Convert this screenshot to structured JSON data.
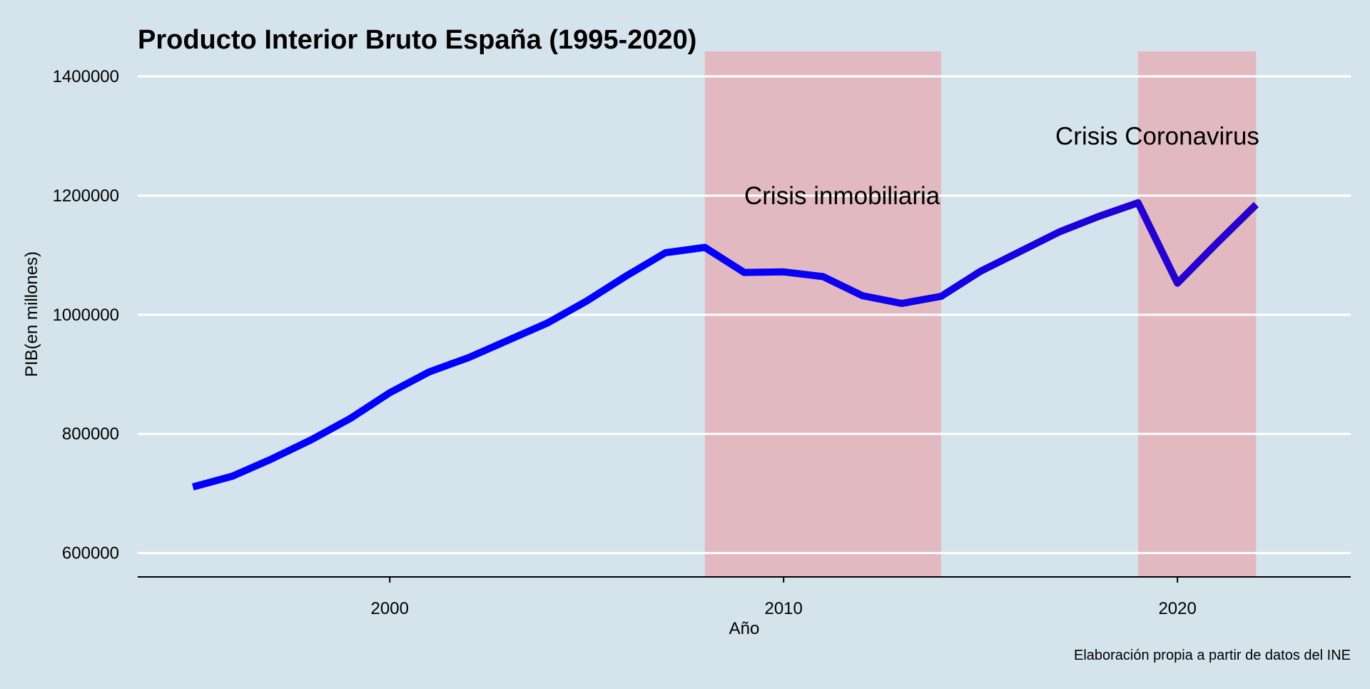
{
  "chart_data": {
    "type": "line",
    "title": "Producto Interior Bruto España (1995-2020)",
    "xlabel": "Año",
    "ylabel": "PIB(en millones)",
    "caption": "Elaboración propia a partir de datos del INE",
    "xlim": [
      1993.6,
      2024.4
    ],
    "ylim": [
      560000,
      1442000
    ],
    "xticks": [
      2000,
      2010,
      2020
    ],
    "yticks": [
      600000,
      800000,
      1000000,
      1200000,
      1400000
    ],
    "grid": "horizontal",
    "background": "#d5e4ec",
    "series": [
      {
        "x": [
          1995,
          1996,
          1997,
          1998,
          1999,
          2000,
          2001,
          2002,
          2003,
          2004,
          2005,
          2006,
          2007,
          2008,
          2009,
          2010,
          2011,
          2012,
          2013,
          2014,
          2015,
          2016,
          2017,
          2018,
          2019,
          2020,
          2021,
          2022
        ],
        "values": [
          711000,
          729000,
          758000,
          790000,
          826000,
          869000,
          904000,
          928000,
          957000,
          986000,
          1023000,
          1065000,
          1104000,
          1113000,
          1071000,
          1072000,
          1064000,
          1032000,
          1019000,
          1031000,
          1073000,
          1106000,
          1139000,
          1165000,
          1188000,
          1053000,
          1120000,
          1185000
        ],
        "colors": [
          "#0000ff",
          "#2a00c8"
        ]
      }
    ],
    "shaded_regions": [
      {
        "x_start": 2008,
        "x_end": 2014,
        "label": "Crisis inmobiliaria",
        "label_x": 2009.0,
        "label_y": 1200000
      },
      {
        "x_start": 2019,
        "x_end": 2022,
        "label": "Crisis Coronavirus",
        "label_x": 2016.9,
        "label_y": 1300000
      }
    ],
    "shade_color": "#e8a7b0"
  }
}
